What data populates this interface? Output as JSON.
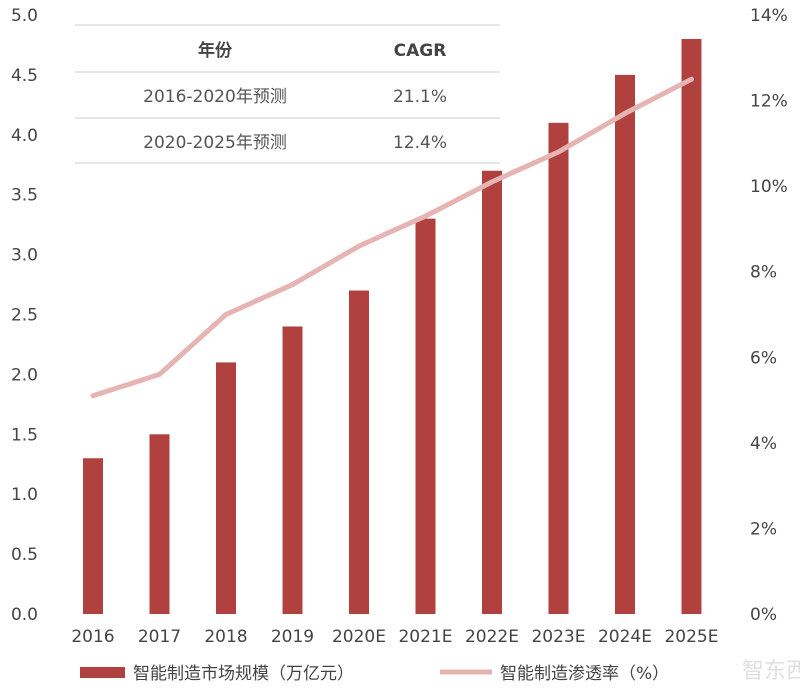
{
  "chart_data": {
    "type": "bar+line",
    "categories": [
      "2016",
      "2017",
      "2018",
      "2019",
      "2020E",
      "2021E",
      "2022E",
      "2023E",
      "2024E",
      "2025E"
    ],
    "series": [
      {
        "name": "智能制造市场规模（万亿元）",
        "type": "bar",
        "axis": "left",
        "color": "#B0413E",
        "values": [
          1.3,
          1.5,
          2.1,
          2.4,
          2.7,
          3.3,
          3.7,
          4.1,
          4.5,
          4.8
        ]
      },
      {
        "name": "智能制造渗透率（%）",
        "type": "line",
        "axis": "right",
        "color": "#E6B4B2",
        "values": [
          5.1,
          5.6,
          7.0,
          7.7,
          8.6,
          9.3,
          10.1,
          10.8,
          11.7,
          12.5
        ]
      }
    ],
    "left_axis": {
      "ylim": [
        0,
        5
      ],
      "ticks": [
        "0.0",
        "0.5",
        "1.0",
        "1.5",
        "2.0",
        "2.5",
        "3.0",
        "3.5",
        "4.0",
        "4.5",
        "5.0"
      ]
    },
    "right_axis": {
      "ylim": [
        0,
        14
      ],
      "ticks": [
        "0%",
        "2%",
        "4%",
        "6%",
        "8%",
        "10%",
        "12%",
        "14%"
      ]
    },
    "grid": false,
    "legend_placement": "bottom",
    "table": {
      "headers": [
        "年份",
        "CAGR"
      ],
      "rows": [
        [
          "2016-2020年预测",
          "21.1%"
        ],
        [
          "2020-2025年预测",
          "12.4%"
        ]
      ]
    },
    "watermark": "智东西"
  }
}
